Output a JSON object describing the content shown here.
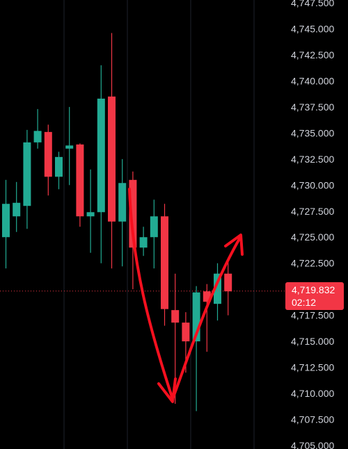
{
  "chart_data": {
    "type": "candlestick",
    "ylim": [
      4705,
      4747.5
    ],
    "y_ticks": [
      "4,747.500",
      "4,745.000",
      "4,742.500",
      "4,740.000",
      "4,737.500",
      "4,735.000",
      "4,732.500",
      "4,730.000",
      "4,727.500",
      "4,725.000",
      "4,722.500",
      "4,720.000",
      "4,717.500",
      "4,715.000",
      "4,712.500",
      "4,710.000",
      "4,707.500",
      "4,705.000"
    ],
    "candles": [
      {
        "o": 4725.0,
        "h": 4730.5,
        "l": 4722.0,
        "c": 4728.2
      },
      {
        "o": 4727.0,
        "h": 4730.3,
        "l": 4725.5,
        "c": 4728.3
      },
      {
        "o": 4728.0,
        "h": 4735.3,
        "l": 4725.8,
        "c": 4734.1
      },
      {
        "o": 4734.1,
        "h": 4737.3,
        "l": 4733.5,
        "c": 4735.2
      },
      {
        "o": 4735.1,
        "h": 4735.8,
        "l": 4729.0,
        "c": 4730.8
      },
      {
        "o": 4730.8,
        "h": 4733.2,
        "l": 4729.6,
        "c": 4732.7
      },
      {
        "o": 4733.5,
        "h": 4737.5,
        "l": 4730.0,
        "c": 4733.8
      },
      {
        "o": 4733.9,
        "h": 4734.0,
        "l": 4726.0,
        "c": 4727.0
      },
      {
        "o": 4727.0,
        "h": 4731.5,
        "l": 4723.5,
        "c": 4727.4
      },
      {
        "o": 4727.4,
        "h": 4741.5,
        "l": 4722.5,
        "c": 4738.3
      },
      {
        "o": 4738.5,
        "h": 4744.6,
        "l": 4722.0,
        "c": 4726.5
      },
      {
        "o": 4726.5,
        "h": 4732.5,
        "l": 4722.2,
        "c": 4730.2
      },
      {
        "o": 4730.5,
        "h": 4731.3,
        "l": 4720.0,
        "c": 4724.0
      },
      {
        "o": 4724.0,
        "h": 4726.0,
        "l": 4723.2,
        "c": 4725.0
      },
      {
        "o": 4725.0,
        "h": 4728.6,
        "l": 4722.0,
        "c": 4727.0
      },
      {
        "o": 4727.0,
        "h": 4728.2,
        "l": 4716.5,
        "c": 4718.1
      },
      {
        "o": 4718.0,
        "h": 4721.5,
        "l": 4709.0,
        "c": 4716.8
      },
      {
        "o": 4716.8,
        "h": 4717.8,
        "l": 4712.0,
        "c": 4715.0
      },
      {
        "o": 4715.0,
        "h": 4720.3,
        "l": 4708.3,
        "c": 4719.7
      },
      {
        "o": 4719.8,
        "h": 4720.5,
        "l": 4714.0,
        "c": 4718.8
      },
      {
        "o": 4718.6,
        "h": 4722.5,
        "l": 4717.0,
        "c": 4721.5
      },
      {
        "o": 4721.5,
        "h": 4723.0,
        "l": 4717.5,
        "c": 4719.8
      }
    ],
    "current_price": "4,719.832",
    "countdown": "02:12",
    "colors": {
      "up": "#22ab94",
      "down": "#f23645",
      "annotation": "#f7101f",
      "grid": "#1e222d",
      "text": "#d1d4dc",
      "price_line": "#f23645"
    },
    "grid": true
  }
}
